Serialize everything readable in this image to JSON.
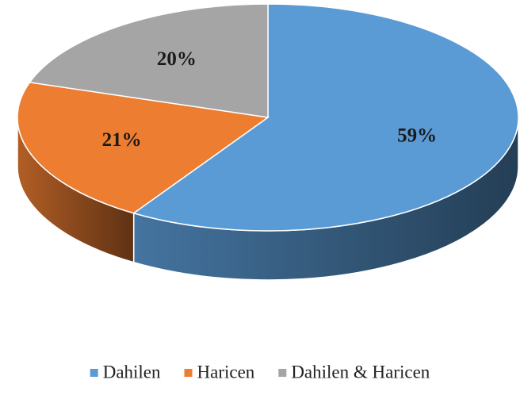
{
  "chart_data": {
    "type": "pie",
    "categories": [
      "Dahilen",
      "Haricen",
      "Dahilen & Haricen"
    ],
    "values": [
      59,
      21,
      20
    ],
    "value_labels": [
      "59%",
      "21%",
      "20%"
    ],
    "colors": [
      "#5b9bd5",
      "#ed7d31",
      "#a5a5a5"
    ],
    "legend": "bottom"
  }
}
